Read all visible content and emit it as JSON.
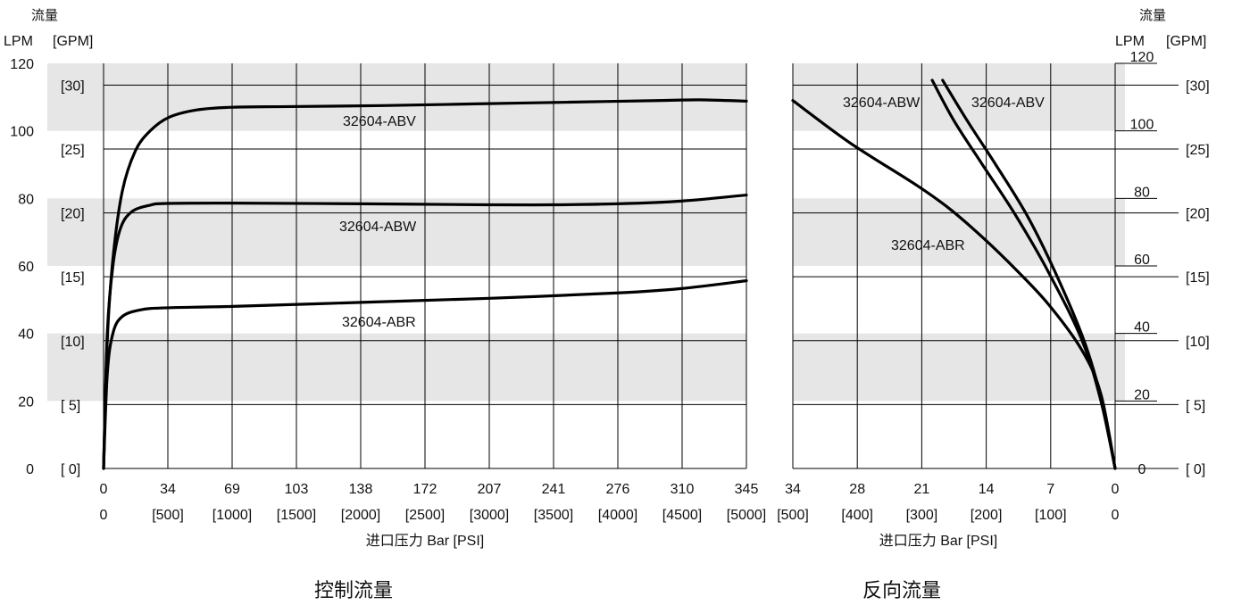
{
  "chart_data": [
    {
      "type": "line",
      "title": "控制流量",
      "xlabel": "进口压力 Bar [PSI]",
      "ylabel_top": "流量",
      "ylabel_left": "LPM",
      "ylabel_right": "[GPM]",
      "x_ticks_bar": [
        "0",
        "34",
        "69",
        "103",
        "138",
        "172",
        "207",
        "241",
        "276",
        "310",
        "345"
      ],
      "x_ticks_psi": [
        "0",
        "[500]",
        "[1000]",
        "[1500]",
        "[2000]",
        "[2500]",
        "[3000]",
        "[3500]",
        "[4000]",
        "[4500]",
        "[5000]"
      ],
      "y_ticks_lpm": [
        "0",
        "20",
        "40",
        "60",
        "80",
        "100",
        "120"
      ],
      "y_ticks_gpm": [
        "[ 0]",
        "[ 5]",
        "[10]",
        "[15]",
        "[20]",
        "[25]",
        "[30]"
      ],
      "xlim": [
        0,
        345
      ],
      "ylim": [
        0,
        120
      ],
      "grid": true,
      "series": [
        {
          "name": "32604-ABV",
          "color": "#000000",
          "points": [
            [
              0,
              0
            ],
            [
              2,
              38
            ],
            [
              5,
              62
            ],
            [
              10,
              82
            ],
            [
              17,
              94
            ],
            [
              25,
              100
            ],
            [
              35,
              104
            ],
            [
              50,
              106.2
            ],
            [
              69,
              107
            ],
            [
              100,
              107.2
            ],
            [
              150,
              107.5
            ],
            [
              200,
              108
            ],
            [
              250,
              108.5
            ],
            [
              300,
              109
            ],
            [
              320,
              109.2
            ],
            [
              345,
              108.8
            ]
          ]
        },
        {
          "name": "32604-ABW",
          "color": "#000000",
          "points": [
            [
              0,
              0
            ],
            [
              2,
              40
            ],
            [
              5,
              60
            ],
            [
              9,
              71
            ],
            [
              15,
              76
            ],
            [
              25,
              78
            ],
            [
              34,
              78.5
            ],
            [
              69,
              78.6
            ],
            [
              138,
              78.4
            ],
            [
              207,
              78.1
            ],
            [
              241,
              78.1
            ],
            [
              276,
              78.4
            ],
            [
              310,
              79.2
            ],
            [
              345,
              81
            ]
          ]
        },
        {
          "name": "32604-ABR",
          "color": "#000000",
          "points": [
            [
              0,
              0
            ],
            [
              2,
              28
            ],
            [
              5,
              40
            ],
            [
              10,
              45
            ],
            [
              20,
              47
            ],
            [
              34,
              47.6
            ],
            [
              69,
              48
            ],
            [
              138,
              49.2
            ],
            [
              207,
              50.4
            ],
            [
              276,
              52
            ],
            [
              310,
              53.3
            ],
            [
              345,
              55.6
            ]
          ]
        }
      ]
    },
    {
      "type": "line",
      "title": "反向流量",
      "xlabel": "进口压力 Bar [PSI]",
      "ylabel_top": "流量",
      "ylabel_left": "LPM",
      "ylabel_right": "[GPM]",
      "x_ticks_bar": [
        "34",
        "28",
        "21",
        "14",
        "7",
        "0"
      ],
      "x_ticks_psi": [
        "[500]",
        "[400]",
        "[300]",
        "[200]",
        "[100]",
        "0"
      ],
      "y_ticks_lpm": [
        "0",
        "20",
        "40",
        "60",
        "80",
        "100",
        "120"
      ],
      "y_ticks_gpm": [
        "[ 0]",
        "[ 5]",
        "[10]",
        "[15]",
        "[20]",
        "[25]",
        "[30]"
      ],
      "xlim": [
        34,
        0
      ],
      "ylim": [
        0,
        120
      ],
      "grid": true,
      "series": [
        {
          "name": "32604-ABW",
          "color": "#000000",
          "points": [
            [
              19.3,
              115
            ],
            [
              17,
              103
            ],
            [
              14,
              90
            ],
            [
              10.5,
              75
            ],
            [
              7,
              58
            ],
            [
              3.5,
              38
            ],
            [
              1.5,
              20
            ],
            [
              0,
              0
            ]
          ]
        },
        {
          "name": "32604-ABV",
          "color": "#000000",
          "points": [
            [
              18.2,
              115
            ],
            [
              15.6,
              103
            ],
            [
              12.6,
              90
            ],
            [
              9.3,
              75
            ],
            [
              6.3,
              58
            ],
            [
              3.3,
              38
            ],
            [
              1.4,
              20
            ],
            [
              0,
              0
            ]
          ]
        },
        {
          "name": "32604-ABR",
          "color": "#000000",
          "points": [
            [
              34,
              109
            ],
            [
              28,
              96.5
            ],
            [
              21,
              84
            ],
            [
              17.5,
              77
            ],
            [
              14,
              68.5
            ],
            [
              10.5,
              59
            ],
            [
              7,
              48.5
            ],
            [
              3.5,
              35
            ],
            [
              1.5,
              22
            ],
            [
              0,
              0
            ]
          ]
        }
      ]
    }
  ]
}
